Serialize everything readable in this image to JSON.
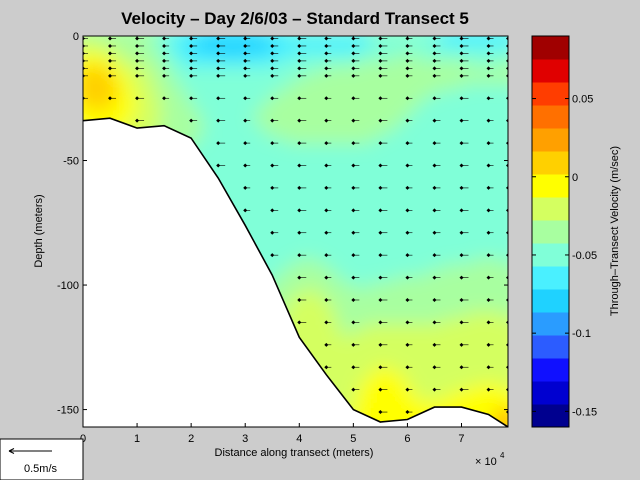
{
  "chart_data": {
    "type": "heatmap",
    "title": "Velocity – Day 2/6/03 – Standard Transect 5",
    "xlabel": "Distance along transect (meters)",
    "ylabel": "Depth (meters)",
    "x_exponent_label": "× 10",
    "x_exponent_power": "4",
    "xlim": [
      0,
      78600
    ],
    "ylim": [
      -157,
      0
    ],
    "x_ticks": [
      0,
      1,
      2,
      3,
      4,
      5,
      6,
      7
    ],
    "y_ticks": [
      0,
      -50,
      -100,
      -150
    ],
    "colorbar": {
      "label": "Through–Transect Velocity (m/sec)",
      "range": [
        -0.16,
        0.09
      ],
      "ticks": [
        0.05,
        0,
        -0.05,
        -0.1,
        -0.15
      ],
      "tick_labels": [
        "0.05",
        "0",
        "-0.05",
        "-0.1",
        "-0.15"
      ],
      "colors": [
        "#00008f",
        "#0000d0",
        "#1010ff",
        "#2c5cff",
        "#2a9cff",
        "#1fd2ff",
        "#4af0ff",
        "#80ffd8",
        "#a8ffa0",
        "#d4ff60",
        "#ffff00",
        "#ffd000",
        "#ffa000",
        "#ff7000",
        "#ff3d00",
        "#e00000",
        "#a00000"
      ]
    },
    "bottom_profile": {
      "x": [
        0,
        5000,
        10000,
        15000,
        20000,
        25000,
        30000,
        35000,
        40000,
        45000,
        50000,
        55000,
        60000,
        65000,
        70000,
        75000,
        78600
      ],
      "depth": [
        -34,
        -33,
        -37,
        -36,
        -41,
        -57,
        -76,
        -96,
        -121,
        -136,
        -150,
        -155,
        -154,
        -149,
        -149,
        -152,
        -157
      ]
    },
    "stations_x": [
      0,
      5000,
      10000,
      15000,
      20000,
      25000,
      30000,
      35000,
      40000,
      45000,
      50000,
      55000,
      60000,
      65000,
      70000,
      75000,
      78600
    ],
    "grid": false
  },
  "scale_legend": {
    "label": "0.5m/s"
  }
}
